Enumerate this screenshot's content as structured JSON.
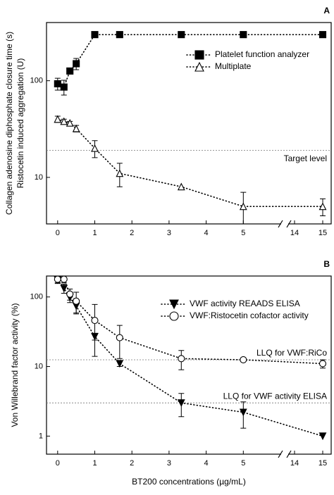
{
  "chart_data": [
    {
      "type": "line",
      "panel_label": "A",
      "ylabel": [
        "Collagen adenosine diphosphate closure time (s)",
        "Ristocetin induced aggregation (U)"
      ],
      "log_y": true,
      "ylim": [
        3.3,
        400
      ],
      "yticks": [
        10,
        100
      ],
      "xlim": [
        -0.3,
        15.3
      ],
      "x_break": [
        6,
        13.8
      ],
      "xticks": [
        0,
        1,
        2,
        3,
        4,
        5,
        14,
        15
      ],
      "legend": "upper right",
      "series": [
        {
          "name": "Platelet function analyzer",
          "color": "#000000",
          "marker": "square",
          "filled": true,
          "x": [
            0,
            0.17,
            0.33,
            0.5,
            1,
            1.67,
            3.33,
            5,
            15
          ],
          "values": [
            93,
            86,
            126,
            150,
            300,
            300,
            300,
            300,
            300
          ],
          "errors": [
            13,
            15,
            null,
            20,
            null,
            null,
            null,
            null,
            null
          ]
        },
        {
          "name": "Multiplate",
          "color": "#000000",
          "marker": "triangle-up",
          "filled": false,
          "x": [
            0,
            0.17,
            0.33,
            0.5,
            1,
            1.67,
            3.33,
            5,
            15
          ],
          "values": [
            40,
            38,
            36.5,
            32,
            20,
            11,
            8,
            5,
            5
          ],
          "errors": [
            3,
            2,
            1.5,
            2.5,
            4,
            3,
            null,
            2,
            1
          ]
        }
      ],
      "hlines": [
        {
          "value": 19,
          "label": "Target level"
        }
      ]
    },
    {
      "type": "line",
      "panel_label": "B",
      "ylabel": "Von Willebrand factor activity (%)",
      "xlabel": "BT200 concentrations (µg/mL)",
      "log_y": true,
      "ylim": [
        0.55,
        200
      ],
      "yticks": [
        1,
        10,
        100
      ],
      "xlim": [
        -0.3,
        15.3
      ],
      "x_break": [
        6,
        13.8
      ],
      "xticks": [
        0,
        1,
        2,
        3,
        4,
        5,
        14,
        15
      ],
      "legend": "upper right",
      "series": [
        {
          "name": "VWF activity REAADS ELISA",
          "color": "#000000",
          "marker": "triangle-down",
          "filled": true,
          "x": [
            0,
            0.17,
            0.33,
            0.5,
            1,
            1.67,
            3.33,
            5,
            15
          ],
          "values": [
            176,
            133,
            98,
            74,
            27,
            11,
            3,
            2.2,
            1
          ],
          "errors": [
            20,
            20,
            15,
            15,
            3,
            1,
            1.1,
            0.9,
            null
          ]
        },
        {
          "name": "VWF:Ristocetin cofactor activity",
          "color": "#000000",
          "marker": "circle",
          "filled": false,
          "x": [
            0,
            0.17,
            0.33,
            0.5,
            1,
            1.67,
            3.33,
            5,
            15
          ],
          "values": [
            180,
            180,
            110,
            87,
            46,
            26,
            13,
            12.5,
            11
          ],
          "errors": [
            20,
            20,
            20,
            30,
            32,
            13,
            4,
            0.6,
            1.5
          ]
        }
      ],
      "hlines": [
        {
          "value": 12.5,
          "label": "LLQ for VWF:RiCo"
        },
        {
          "value": 3,
          "label": "LLQ for VWF activity ELISA"
        }
      ]
    }
  ]
}
